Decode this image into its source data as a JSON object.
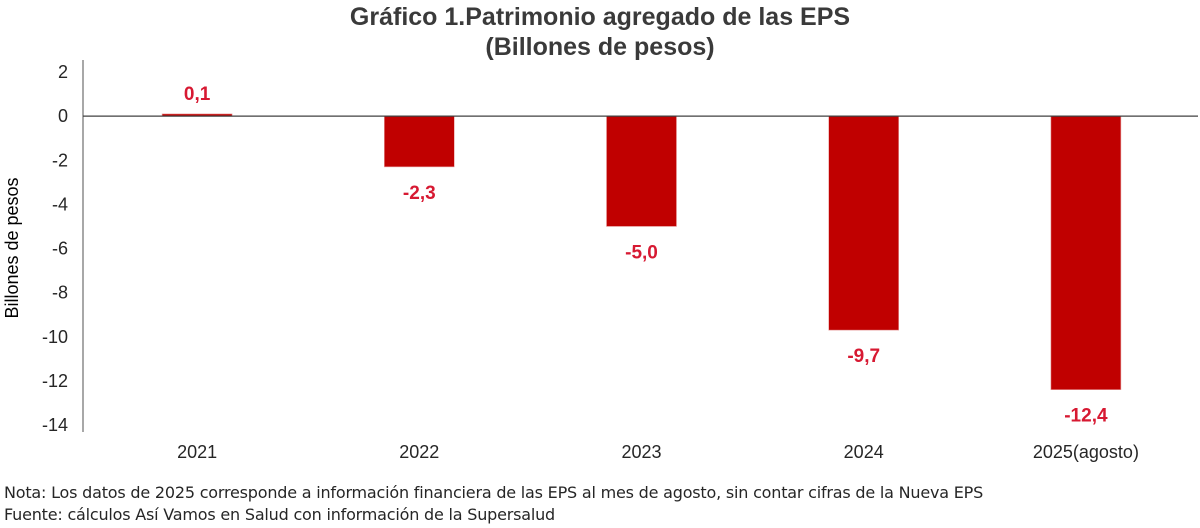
{
  "chart_data": {
    "type": "bar",
    "title": "Gráfico 1.Patrimonio agregado de las EPS",
    "subtitle": "(Billones de pesos)",
    "xlabel": "",
    "ylabel": "Billones de pesos",
    "categories": [
      "2021",
      "2022",
      "2023",
      "2024",
      "2025(agosto)"
    ],
    "values": [
      0.1,
      -2.3,
      -5.0,
      -9.7,
      -12.4
    ],
    "data_labels": [
      "0,1",
      "-2,3",
      "-5,0",
      "-9,7",
      "-12,4"
    ],
    "ylim": [
      -14,
      2
    ],
    "yticks": [
      2,
      0,
      -2,
      -4,
      -6,
      -8,
      -10,
      -12,
      -14
    ],
    "ytick_labels": [
      "2",
      "0",
      "-2",
      "-4",
      "-6",
      "-8",
      "-10",
      "-12",
      "-14"
    ],
    "grid": false,
    "legend": "none",
    "colors": {
      "bar": "#c00000",
      "data_label": "#d71932",
      "axis": "#404040"
    }
  },
  "notes": {
    "nota": "Nota: Los datos de 2025 corresponde a información financiera de las EPS al mes de agosto, sin contar cifras de la Nueva EPS",
    "fuente": "Fuente: cálculos Así Vamos en Salud con información de la Supersalud"
  }
}
